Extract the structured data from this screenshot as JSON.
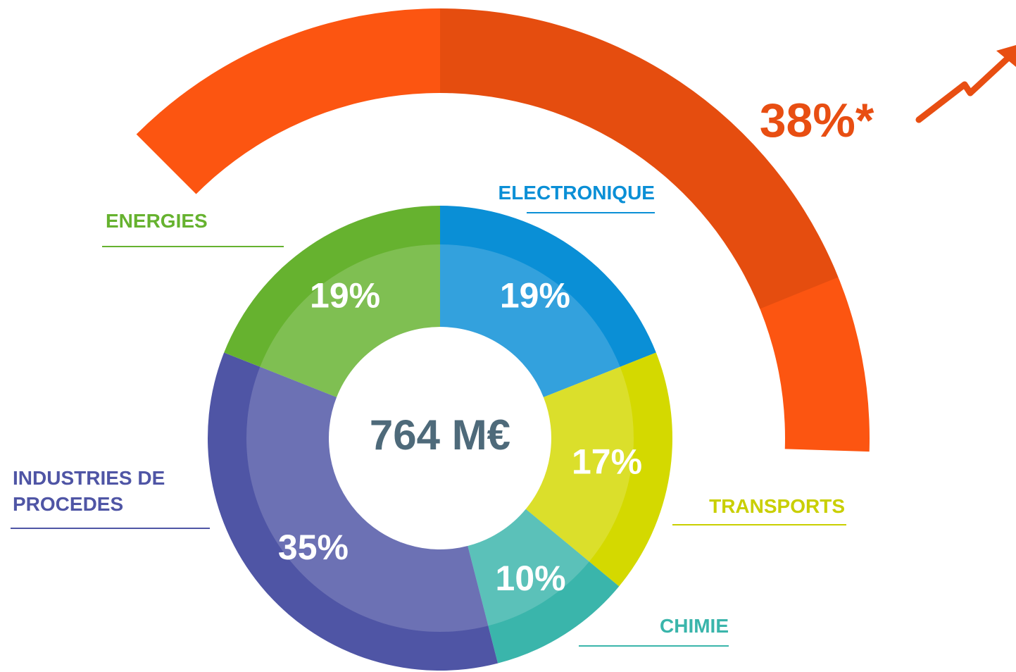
{
  "chart_data": {
    "type": "donut",
    "center_label": "764 M€",
    "categories": [
      "ELECTRONIQUE",
      "TRANSPORTS",
      "CHIMIE",
      "INDUSTRIES DE PROCEDES",
      "ENERGIES"
    ],
    "values": [
      19,
      17,
      10,
      35,
      19
    ],
    "value_labels": [
      "19%",
      "17%",
      "10%",
      "35%",
      "19%"
    ],
    "colors": [
      "#0a8fd6",
      "#d4d900",
      "#3ab5ab",
      "#4f55a5",
      "#66b22f"
    ],
    "label_colors": [
      "#0a8fd6",
      "#c9cf00",
      "#3ab5ab",
      "#4f55a5",
      "#66b22f"
    ],
    "growth": {
      "value": 38,
      "label": "38%*",
      "color": "#fc5511"
    }
  }
}
